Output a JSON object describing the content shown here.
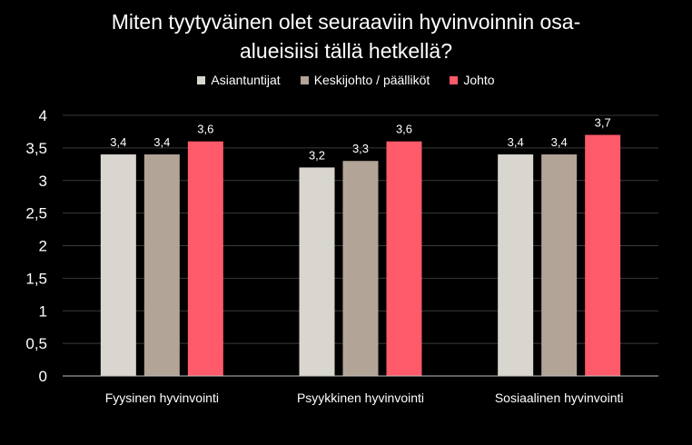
{
  "chart_data": {
    "type": "bar",
    "title_lines": [
      "Miten tyytyväinen olet seuraaviin hyvinvoinnin osa-",
      "alueisiisi tällä hetkellä?"
    ],
    "categories": [
      "Fyysinen hyvinvointi",
      "Psyykkinen hyvinvointi",
      "Sosiaalinen hyvinvointi"
    ],
    "series": [
      {
        "name": "Asiantuntijat",
        "values": [
          3.4,
          3.2,
          3.4
        ],
        "labels": [
          "3,4",
          "3,2",
          "3,4"
        ],
        "color": "#d9d6d0"
      },
      {
        "name": "Keskijohto / päälliköt",
        "values": [
          3.4,
          3.3,
          3.4
        ],
        "labels": [
          "3,4",
          "3,3",
          "3,4"
        ],
        "color": "#b3a498"
      },
      {
        "name": "Johto",
        "values": [
          3.6,
          3.6,
          3.7
        ],
        "labels": [
          "3,6",
          "3,6",
          "3,7"
        ],
        "color": "#ff5a6a"
      }
    ],
    "ylim": [
      0,
      4
    ],
    "yticks": [
      {
        "value": 0,
        "label": "0"
      },
      {
        "value": 0.5,
        "label": "0,5"
      },
      {
        "value": 1,
        "label": "1"
      },
      {
        "value": 1.5,
        "label": "1,5"
      },
      {
        "value": 2,
        "label": "2"
      },
      {
        "value": 2.5,
        "label": "2,5"
      },
      {
        "value": 3,
        "label": "3"
      },
      {
        "value": 3.5,
        "label": "3,5"
      },
      {
        "value": 4,
        "label": "4"
      }
    ],
    "grid": true,
    "legend_position": "top",
    "xlabel": "",
    "ylabel": ""
  },
  "colors": {
    "background": "#000000",
    "gridline": "#3a3a3a",
    "axis": "#bfbfbf",
    "text": "#ffffff"
  }
}
